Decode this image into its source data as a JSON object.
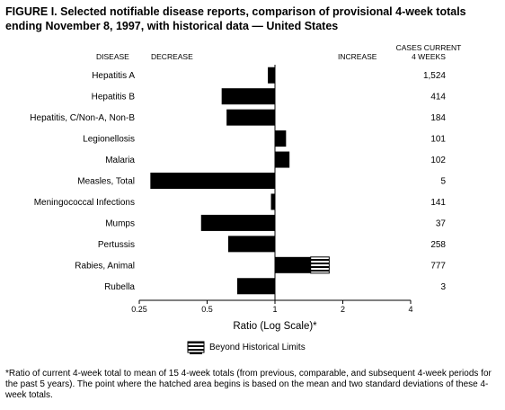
{
  "title": "FIGURE I. Selected notifiable disease reports, comparison of provisional 4-week totals ending November 8, 1997, with historical data — United States",
  "headers": {
    "disease": "DISEASE",
    "decrease": "DECREASE",
    "increase": "INCREASE",
    "cases_line1": "CASES CURRENT",
    "cases_line2": "4 WEEKS"
  },
  "legend_label": "Beyond Historical Limits",
  "footnote": {
    "marker": "*",
    "text": "Ratio of current 4-week total to mean of 15 4-week totals (from previous, comparable, and subsequent 4-week periods for the past 5 years). The point where the hatched area begins is based on the mean and two standard deviations of these 4-week totals."
  },
  "chart_data": {
    "type": "bar",
    "orientation": "horizontal",
    "x_scale": "log2",
    "xlabel": "Ratio (Log Scale)*",
    "xlim": [
      0.25,
      4
    ],
    "xticks": [
      0.25,
      0.5,
      1,
      2,
      4
    ],
    "xtick_labels": [
      "0.25",
      "0.5",
      "1",
      "2",
      "4"
    ],
    "baseline": 1,
    "grid": false,
    "categories": [
      "Hepatitis A",
      "Hepatitis B",
      "Hepatitis, C/Non-A, Non-B",
      "Legionellosis",
      "Malaria",
      "Measles, Total",
      "Meningococcal Infections",
      "Mumps",
      "Pertussis",
      "Rabies, Animal",
      "Rubella"
    ],
    "ratios": [
      0.93,
      0.58,
      0.61,
      1.12,
      1.16,
      0.28,
      0.96,
      0.47,
      0.62,
      1.74,
      0.68
    ],
    "beyond_limits_start": [
      null,
      null,
      null,
      null,
      null,
      null,
      null,
      null,
      null,
      1.44,
      null
    ],
    "cases_current_4_weeks": [
      "1,524",
      "414",
      "184",
      "101",
      "102",
      "5",
      "141",
      "37",
      "258",
      "777",
      "3"
    ]
  }
}
